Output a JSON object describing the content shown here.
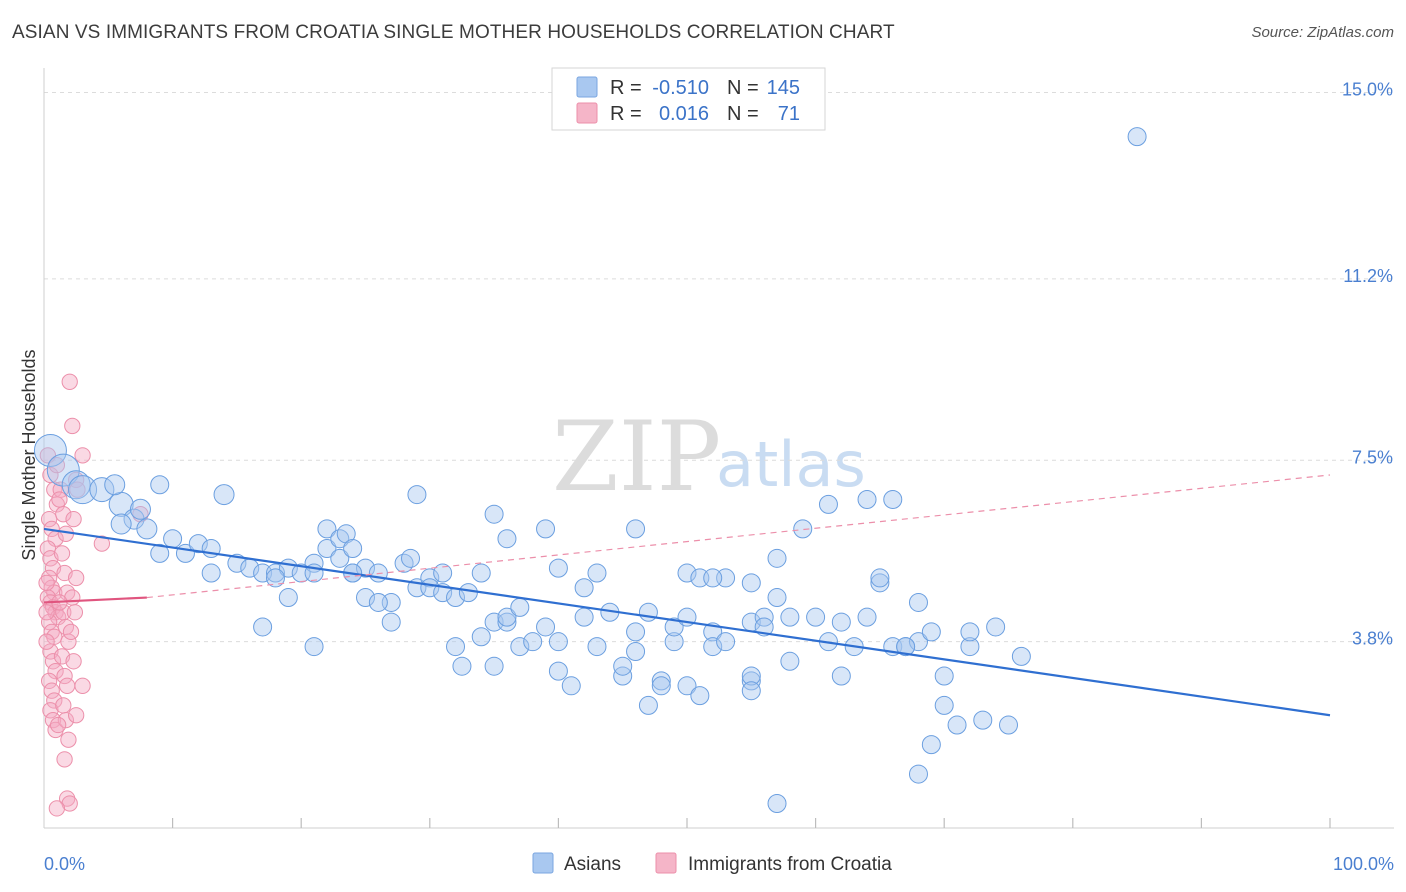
{
  "title": "ASIAN VS IMMIGRANTS FROM CROATIA SINGLE MOTHER HOUSEHOLDS CORRELATION CHART",
  "source": "Source: ZipAtlas.com",
  "watermark": {
    "zip": "ZIP",
    "atlas": "atlas"
  },
  "legend_box": {
    "rows": [
      {
        "r_label": "R =",
        "r_value": "-0.510",
        "n_label": "N =",
        "n_value": "145",
        "color": "#a9c8f0"
      },
      {
        "r_label": "R =",
        "r_value": "0.016",
        "n_label": "N =",
        "n_value": "71",
        "color": "#f5b5c8"
      }
    ]
  },
  "bottom_legend": [
    {
      "label": "Asians",
      "color": "#a9c8f0"
    },
    {
      "label": "Immigrants from Croatia",
      "color": "#f5b5c8"
    }
  ],
  "chart_data": {
    "type": "scatter",
    "ylabel": "Single Mother Households",
    "xlabel": "",
    "xlim": [
      0,
      100
    ],
    "ylim": [
      0,
      15.5
    ],
    "x_tick_labels": [
      "0.0%",
      "100.0%"
    ],
    "y_ticks": [
      {
        "value": 3.8,
        "label": "3.8%"
      },
      {
        "value": 7.5,
        "label": "7.5%"
      },
      {
        "value": 11.2,
        "label": "11.2%"
      },
      {
        "value": 15.0,
        "label": "15.0%"
      }
    ],
    "grid": "horizontal dashed",
    "colors": {
      "asians": "#6b9fe0",
      "croatia": "#ef8aa8",
      "asians_line": "#2f6fd1",
      "croatia_line": "#e0557f"
    },
    "series": [
      {
        "name": "Asians",
        "trend": {
          "x0": 0,
          "y0": 6.1,
          "x1": 100,
          "y1": 2.3
        },
        "points": [
          [
            0.5,
            7.7,
            16
          ],
          [
            1.5,
            7.3,
            16
          ],
          [
            2.5,
            7.0,
            14
          ],
          [
            3,
            6.9,
            14
          ],
          [
            4.5,
            6.9,
            12
          ],
          [
            6,
            6.6,
            12
          ],
          [
            5.5,
            7.0,
            10
          ],
          [
            7,
            6.3,
            10
          ],
          [
            6,
            6.2,
            10
          ],
          [
            8,
            6.1,
            10
          ],
          [
            7.5,
            6.5,
            10
          ],
          [
            9,
            7.0,
            9
          ],
          [
            14,
            6.8,
            10
          ],
          [
            10,
            5.9,
            9
          ],
          [
            9,
            5.6,
            9
          ],
          [
            11,
            5.6,
            9
          ],
          [
            12,
            5.8,
            9
          ],
          [
            13,
            5.7,
            9
          ],
          [
            15,
            5.4,
            9
          ],
          [
            13,
            5.2,
            9
          ],
          [
            16,
            5.3,
            9
          ],
          [
            17,
            5.2,
            9
          ],
          [
            18,
            5.2,
            9
          ],
          [
            19,
            5.3,
            9
          ],
          [
            18,
            5.1,
            9
          ],
          [
            20,
            5.2,
            9
          ],
          [
            21,
            5.4,
            9
          ],
          [
            22,
            5.7,
            9
          ],
          [
            23,
            5.5,
            9
          ],
          [
            24,
            5.2,
            9
          ],
          [
            25,
            4.7,
            9
          ],
          [
            21,
            5.2,
            9
          ],
          [
            19,
            4.7,
            9
          ],
          [
            17,
            4.1,
            9
          ],
          [
            21,
            3.7,
            9
          ],
          [
            22,
            6.1,
            9
          ],
          [
            23,
            5.9,
            9
          ],
          [
            23.5,
            6.0,
            9
          ],
          [
            24,
            5.7,
            9
          ],
          [
            25,
            5.3,
            9
          ],
          [
            24,
            5.2,
            9
          ],
          [
            26,
            5.2,
            9
          ],
          [
            27,
            4.6,
            9
          ],
          [
            26,
            4.6,
            9
          ],
          [
            27,
            4.2,
            9
          ],
          [
            28,
            5.4,
            9
          ],
          [
            28.5,
            5.5,
            9
          ],
          [
            29,
            4.9,
            9
          ],
          [
            30,
            5.1,
            9
          ],
          [
            30,
            4.9,
            9
          ],
          [
            31,
            5.2,
            9
          ],
          [
            29,
            6.8,
            9
          ],
          [
            31,
            4.8,
            9
          ],
          [
            32,
            4.7,
            9
          ],
          [
            33,
            4.8,
            9
          ],
          [
            32,
            3.7,
            9
          ],
          [
            32.5,
            3.3,
            9
          ],
          [
            34,
            3.9,
            9
          ],
          [
            34,
            5.2,
            9
          ],
          [
            35,
            3.3,
            9
          ],
          [
            35,
            4.2,
            9
          ],
          [
            36,
            4.2,
            9
          ],
          [
            36,
            4.3,
            9
          ],
          [
            37,
            3.7,
            9
          ],
          [
            37,
            4.5,
            9
          ],
          [
            35,
            6.4,
            9
          ],
          [
            36,
            5.9,
            9
          ],
          [
            38,
            3.8,
            9
          ],
          [
            39,
            4.1,
            9
          ],
          [
            40,
            5.3,
            9
          ],
          [
            40,
            3.8,
            9
          ],
          [
            40,
            3.2,
            9
          ],
          [
            41,
            2.9,
            9
          ],
          [
            42,
            4.9,
            9
          ],
          [
            42,
            4.3,
            9
          ],
          [
            43,
            5.2,
            9
          ],
          [
            43,
            3.7,
            9
          ],
          [
            44,
            4.4,
            9
          ],
          [
            45,
            3.1,
            9
          ],
          [
            45,
            3.3,
            9
          ],
          [
            46,
            4.0,
            9
          ],
          [
            46,
            3.6,
            9
          ],
          [
            47,
            4.4,
            9
          ],
          [
            47,
            2.5,
            9
          ],
          [
            48,
            3.0,
            9
          ],
          [
            48,
            2.9,
            9
          ],
          [
            49,
            3.8,
            9
          ],
          [
            49,
            4.1,
            9
          ],
          [
            50,
            5.2,
            9
          ],
          [
            50,
            2.9,
            9
          ],
          [
            51,
            2.7,
            9
          ],
          [
            51,
            5.1,
            9
          ],
          [
            52,
            4.0,
            9
          ],
          [
            52,
            3.7,
            9
          ],
          [
            53,
            5.1,
            9
          ],
          [
            53,
            3.8,
            9
          ],
          [
            55,
            3.0,
            9
          ],
          [
            55,
            3.1,
            9
          ],
          [
            55,
            2.8,
            9
          ],
          [
            55,
            4.2,
            9
          ],
          [
            56,
            4.3,
            9
          ],
          [
            57,
            4.7,
            9
          ],
          [
            58,
            4.3,
            9
          ],
          [
            57,
            5.5,
            9
          ],
          [
            58,
            3.4,
            9
          ],
          [
            59,
            6.1,
            9
          ],
          [
            60,
            4.3,
            9
          ],
          [
            61,
            3.8,
            9
          ],
          [
            62,
            3.1,
            9
          ],
          [
            63,
            3.7,
            9
          ],
          [
            64,
            4.3,
            9
          ],
          [
            65,
            5.0,
            9
          ],
          [
            65,
            5.1,
            9
          ],
          [
            66,
            3.7,
            9
          ],
          [
            67,
            3.7,
            9
          ],
          [
            68,
            4.6,
            9
          ],
          [
            68,
            3.8,
            9
          ],
          [
            69,
            4.0,
            9
          ],
          [
            70,
            2.5,
            9
          ],
          [
            71,
            2.1,
            9
          ],
          [
            72,
            3.7,
            9
          ],
          [
            72,
            4.0,
            9
          ],
          [
            73,
            2.2,
            9
          ],
          [
            74,
            4.1,
            9
          ],
          [
            75,
            2.1,
            9
          ],
          [
            76,
            3.5,
            9
          ],
          [
            68,
            1.1,
            9
          ],
          [
            69,
            1.7,
            9
          ],
          [
            70,
            3.1,
            9
          ],
          [
            64,
            6.7,
            9
          ],
          [
            67,
            3.7,
            9
          ],
          [
            66,
            6.7,
            9
          ],
          [
            61,
            6.6,
            9
          ],
          [
            57,
            0.5,
            9
          ],
          [
            85,
            14.1,
            9
          ],
          [
            62,
            4.2,
            9
          ],
          [
            55,
            5.0,
            9
          ],
          [
            52,
            5.1,
            9
          ],
          [
            56,
            4.1,
            9
          ],
          [
            50,
            4.3,
            9
          ],
          [
            46,
            6.1,
            9
          ],
          [
            39,
            6.1,
            9
          ]
        ]
      },
      {
        "name": "Immigrants from Croatia",
        "trend": {
          "x0": 0,
          "y0": 4.6,
          "x1": 8,
          "y1": 4.7
        },
        "trend_extended": {
          "x0": 8,
          "y0": 4.7,
          "x1": 100,
          "y1": 7.2
        },
        "points": [
          [
            0.3,
            7.6,
            9
          ],
          [
            0.5,
            7.2,
            9
          ],
          [
            0.8,
            6.9,
            9
          ],
          [
            1,
            6.6,
            9
          ],
          [
            0.4,
            6.3,
            9
          ],
          [
            0.6,
            6.1,
            9
          ],
          [
            0.9,
            5.9,
            9
          ],
          [
            0.3,
            5.7,
            9
          ],
          [
            0.5,
            5.5,
            9
          ],
          [
            0.7,
            5.3,
            9
          ],
          [
            0.4,
            5.1,
            9
          ],
          [
            0.6,
            4.9,
            9
          ],
          [
            0.8,
            4.8,
            9
          ],
          [
            0.3,
            4.7,
            9
          ],
          [
            0.5,
            4.6,
            9
          ],
          [
            0.7,
            4.5,
            9
          ],
          [
            0.9,
            4.4,
            9
          ],
          [
            1.1,
            4.3,
            9
          ],
          [
            0.4,
            4.2,
            9
          ],
          [
            0.6,
            4.0,
            9
          ],
          [
            0.8,
            3.9,
            9
          ],
          [
            0.5,
            3.6,
            9
          ],
          [
            0.7,
            3.4,
            9
          ],
          [
            0.9,
            3.2,
            9
          ],
          [
            0.4,
            3.0,
            9
          ],
          [
            0.6,
            2.8,
            9
          ],
          [
            0.8,
            2.6,
            9
          ],
          [
            0.5,
            2.4,
            9
          ],
          [
            0.7,
            2.2,
            9
          ],
          [
            0.9,
            2.0,
            9
          ],
          [
            1.3,
            6.9,
            9
          ],
          [
            1.5,
            6.4,
            9
          ],
          [
            1.7,
            6.0,
            9
          ],
          [
            1.4,
            5.6,
            9
          ],
          [
            1.6,
            5.2,
            9
          ],
          [
            1.8,
            4.8,
            9
          ],
          [
            1.5,
            4.4,
            9
          ],
          [
            1.7,
            4.1,
            9
          ],
          [
            1.9,
            3.8,
            9
          ],
          [
            1.4,
            3.5,
            9
          ],
          [
            1.6,
            3.1,
            9
          ],
          [
            1.8,
            2.9,
            9
          ],
          [
            1.5,
            2.5,
            9
          ],
          [
            1.7,
            2.2,
            9
          ],
          [
            1.9,
            1.8,
            9
          ],
          [
            1.6,
            1.4,
            9
          ],
          [
            1.8,
            0.6,
            9
          ],
          [
            2,
            0.5,
            9
          ],
          [
            2.2,
            8.2,
            9
          ],
          [
            2.0,
            9.1,
            9
          ],
          [
            3.0,
            7.6,
            9
          ],
          [
            2.5,
            7.1,
            9
          ],
          [
            2.3,
            6.3,
            9
          ],
          [
            2.5,
            5.1,
            9
          ],
          [
            2.2,
            4.7,
            9
          ],
          [
            2.4,
            4.4,
            9
          ],
          [
            2.1,
            4.0,
            9
          ],
          [
            2.3,
            3.4,
            9
          ],
          [
            2.5,
            2.3,
            9
          ],
          [
            3,
            2.9,
            9
          ],
          [
            4.5,
            5.8,
            9
          ],
          [
            7.5,
            6.4,
            9
          ],
          [
            1,
            7.4,
            9
          ],
          [
            1.2,
            4.6,
            9
          ],
          [
            0.2,
            5.0,
            9
          ],
          [
            0.2,
            4.4,
            9
          ],
          [
            0.2,
            3.8,
            9
          ],
          [
            1,
            0.4,
            9
          ],
          [
            1.1,
            2.1,
            9
          ],
          [
            1.2,
            6.7,
            9
          ],
          [
            2.6,
            6.9,
            9
          ]
        ]
      }
    ]
  }
}
